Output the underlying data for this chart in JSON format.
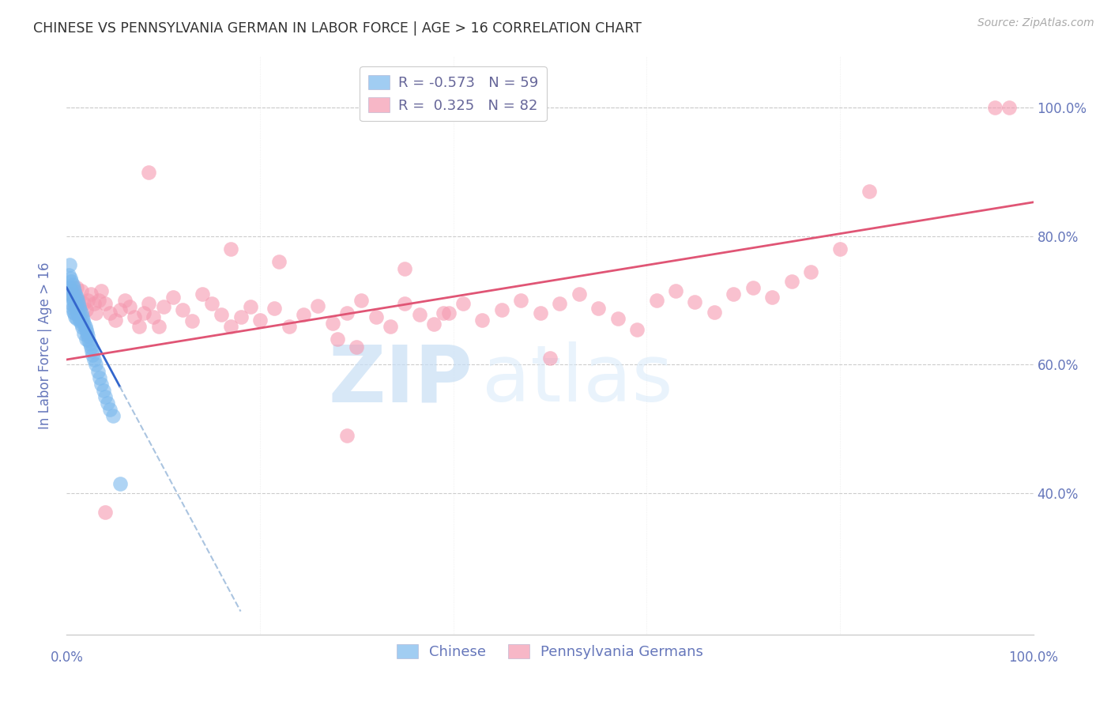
{
  "title": "CHINESE VS PENNSYLVANIA GERMAN IN LABOR FORCE | AGE > 16 CORRELATION CHART",
  "source": "Source: ZipAtlas.com",
  "ylabel": "In Labor Force | Age > 16",
  "ytick_values": [
    1.0,
    0.8,
    0.6,
    0.4
  ],
  "xlim": [
    0.0,
    1.0
  ],
  "ylim": [
    0.18,
    1.08
  ],
  "legend_entries": [
    {
      "label": "R = -0.573   N = 59",
      "color": "#7fb3e8"
    },
    {
      "label": "R =  0.325   N = 82",
      "color": "#f4a0b0"
    }
  ],
  "watermark_zip": "ZIP",
  "watermark_atlas": "atlas",
  "chinese_color": "#7ab8ed",
  "pa_german_color": "#f599b0",
  "trend_chinese_color": "#3366cc",
  "trend_pa_german_color": "#e05575",
  "trend_chinese_dashed_color": "#aac4e0",
  "chinese_intercept": 0.72,
  "chinese_slope": -2.8,
  "pa_german_intercept": 0.608,
  "pa_german_slope": 0.245,
  "chinese_x": [
    0.002,
    0.003,
    0.003,
    0.004,
    0.004,
    0.005,
    0.005,
    0.005,
    0.006,
    0.006,
    0.006,
    0.007,
    0.007,
    0.007,
    0.008,
    0.008,
    0.008,
    0.009,
    0.009,
    0.009,
    0.01,
    0.01,
    0.01,
    0.011,
    0.011,
    0.012,
    0.012,
    0.013,
    0.013,
    0.014,
    0.014,
    0.015,
    0.015,
    0.016,
    0.016,
    0.017,
    0.018,
    0.018,
    0.019,
    0.02,
    0.02,
    0.021,
    0.022,
    0.023,
    0.024,
    0.025,
    0.026,
    0.027,
    0.028,
    0.03,
    0.032,
    0.034,
    0.036,
    0.038,
    0.04,
    0.042,
    0.045,
    0.048,
    0.055
  ],
  "chinese_y": [
    0.74,
    0.755,
    0.72,
    0.735,
    0.715,
    0.73,
    0.71,
    0.695,
    0.725,
    0.705,
    0.688,
    0.72,
    0.7,
    0.682,
    0.715,
    0.698,
    0.68,
    0.71,
    0.692,
    0.675,
    0.705,
    0.688,
    0.672,
    0.7,
    0.682,
    0.695,
    0.678,
    0.69,
    0.673,
    0.685,
    0.668,
    0.68,
    0.663,
    0.675,
    0.658,
    0.67,
    0.665,
    0.648,
    0.66,
    0.655,
    0.64,
    0.65,
    0.645,
    0.638,
    0.632,
    0.628,
    0.622,
    0.615,
    0.608,
    0.6,
    0.59,
    0.58,
    0.57,
    0.56,
    0.55,
    0.54,
    0.53,
    0.52,
    0.415
  ],
  "pa_german_x": [
    0.005,
    0.008,
    0.01,
    0.012,
    0.015,
    0.018,
    0.02,
    0.022,
    0.025,
    0.028,
    0.03,
    0.033,
    0.036,
    0.04,
    0.045,
    0.05,
    0.055,
    0.06,
    0.065,
    0.07,
    0.075,
    0.08,
    0.085,
    0.09,
    0.095,
    0.1,
    0.11,
    0.12,
    0.13,
    0.14,
    0.15,
    0.16,
    0.17,
    0.18,
    0.19,
    0.2,
    0.215,
    0.23,
    0.245,
    0.26,
    0.275,
    0.29,
    0.305,
    0.32,
    0.335,
    0.35,
    0.365,
    0.38,
    0.395,
    0.41,
    0.43,
    0.45,
    0.47,
    0.49,
    0.51,
    0.53,
    0.55,
    0.57,
    0.59,
    0.61,
    0.63,
    0.65,
    0.67,
    0.69,
    0.71,
    0.73,
    0.75,
    0.77,
    0.8,
    0.83,
    0.28,
    0.3,
    0.04,
    0.5,
    0.29,
    0.96,
    0.975,
    0.17,
    0.085,
    0.35,
    0.22,
    0.39
  ],
  "pa_german_y": [
    0.71,
    0.69,
    0.72,
    0.7,
    0.715,
    0.695,
    0.685,
    0.7,
    0.71,
    0.695,
    0.68,
    0.7,
    0.715,
    0.695,
    0.68,
    0.67,
    0.685,
    0.7,
    0.69,
    0.675,
    0.66,
    0.68,
    0.695,
    0.675,
    0.66,
    0.69,
    0.705,
    0.685,
    0.668,
    0.71,
    0.695,
    0.678,
    0.66,
    0.675,
    0.69,
    0.67,
    0.688,
    0.66,
    0.678,
    0.692,
    0.665,
    0.68,
    0.7,
    0.675,
    0.66,
    0.695,
    0.678,
    0.663,
    0.68,
    0.695,
    0.67,
    0.685,
    0.7,
    0.68,
    0.695,
    0.71,
    0.688,
    0.672,
    0.655,
    0.7,
    0.715,
    0.698,
    0.682,
    0.71,
    0.72,
    0.705,
    0.73,
    0.745,
    0.78,
    0.87,
    0.64,
    0.628,
    0.37,
    0.61,
    0.49,
    1.0,
    1.0,
    0.78,
    0.9,
    0.75,
    0.76,
    0.68
  ],
  "bg_color": "#ffffff",
  "grid_color": "#cccccc",
  "axis_color": "#666699",
  "title_color": "#333333",
  "label_color": "#6677bb"
}
